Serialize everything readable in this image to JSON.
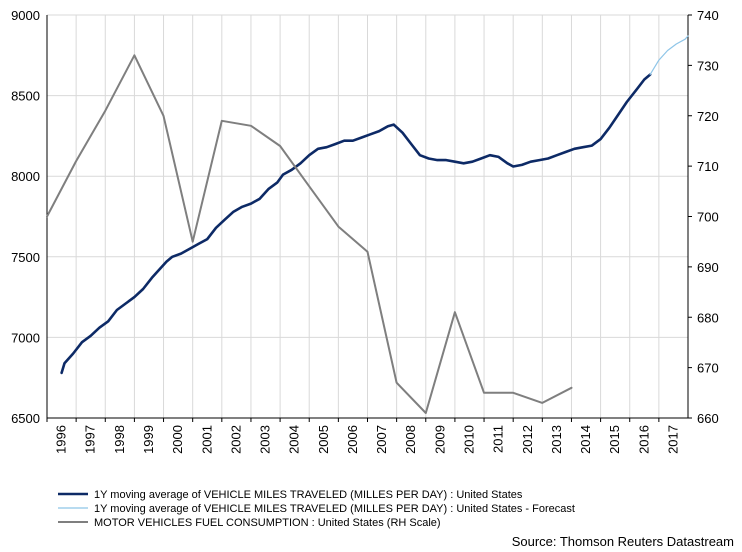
{
  "chart_data": {
    "type": "line",
    "x_ticks": [
      "1996",
      "1997",
      "1998",
      "1999",
      "2000",
      "2001",
      "2002",
      "2003",
      "2004",
      "2005",
      "2006",
      "2007",
      "2008",
      "2009",
      "2010",
      "2011",
      "2012",
      "2013",
      "2014",
      "2015",
      "2016",
      "2017"
    ],
    "y_left": {
      "min": 6500,
      "max": 9000,
      "ticks": [
        "6500",
        "7000",
        "7500",
        "8000",
        "8500",
        "9000"
      ]
    },
    "y_right": {
      "min": 660,
      "max": 740,
      "ticks": [
        "660",
        "670",
        "680",
        "690",
        "700",
        "710",
        "720",
        "730",
        "740"
      ]
    },
    "grid": true,
    "legend_placement": "bottom",
    "source": "Source: Thomson Reuters Datastream",
    "series": [
      {
        "name": "1Y moving average of VEHICLE MILES TRAVELED (MILLES PER DAY) : United States",
        "axis": "left",
        "color": "#0d2a66",
        "points": [
          [
            1996.5,
            6780
          ],
          [
            1996.6,
            6840
          ],
          [
            1996.9,
            6900
          ],
          [
            1997.2,
            6970
          ],
          [
            1997.5,
            7010
          ],
          [
            1997.8,
            7060
          ],
          [
            1998.1,
            7100
          ],
          [
            1998.4,
            7170
          ],
          [
            1998.7,
            7210
          ],
          [
            1999.0,
            7250
          ],
          [
            1999.3,
            7300
          ],
          [
            1999.6,
            7370
          ],
          [
            1999.9,
            7430
          ],
          [
            2000.1,
            7470
          ],
          [
            2000.3,
            7500
          ],
          [
            2000.6,
            7520
          ],
          [
            2000.9,
            7550
          ],
          [
            2001.2,
            7580
          ],
          [
            2001.5,
            7610
          ],
          [
            2001.8,
            7680
          ],
          [
            2002.1,
            7730
          ],
          [
            2002.4,
            7780
          ],
          [
            2002.7,
            7810
          ],
          [
            2003.0,
            7830
          ],
          [
            2003.3,
            7860
          ],
          [
            2003.6,
            7920
          ],
          [
            2003.9,
            7960
          ],
          [
            2004.1,
            8010
          ],
          [
            2004.4,
            8040
          ],
          [
            2004.7,
            8080
          ],
          [
            2005.0,
            8130
          ],
          [
            2005.3,
            8170
          ],
          [
            2005.6,
            8180
          ],
          [
            2005.9,
            8200
          ],
          [
            2006.2,
            8220
          ],
          [
            2006.5,
            8220
          ],
          [
            2006.8,
            8240
          ],
          [
            2007.1,
            8260
          ],
          [
            2007.4,
            8280
          ],
          [
            2007.7,
            8310
          ],
          [
            2007.9,
            8320
          ],
          [
            2008.2,
            8270
          ],
          [
            2008.5,
            8200
          ],
          [
            2008.8,
            8130
          ],
          [
            2009.1,
            8110
          ],
          [
            2009.4,
            8100
          ],
          [
            2009.7,
            8100
          ],
          [
            2010.0,
            8090
          ],
          [
            2010.3,
            8080
          ],
          [
            2010.6,
            8090
          ],
          [
            2010.9,
            8110
          ],
          [
            2011.2,
            8130
          ],
          [
            2011.5,
            8120
          ],
          [
            2011.8,
            8080
          ],
          [
            2012.0,
            8060
          ],
          [
            2012.3,
            8070
          ],
          [
            2012.6,
            8090
          ],
          [
            2012.9,
            8100
          ],
          [
            2013.2,
            8110
          ],
          [
            2013.5,
            8130
          ],
          [
            2013.8,
            8150
          ],
          [
            2014.1,
            8170
          ],
          [
            2014.4,
            8180
          ],
          [
            2014.7,
            8190
          ],
          [
            2015.0,
            8230
          ],
          [
            2015.3,
            8300
          ],
          [
            2015.6,
            8380
          ],
          [
            2015.9,
            8460
          ],
          [
            2016.2,
            8530
          ],
          [
            2016.5,
            8600
          ],
          [
            2016.7,
            8630
          ]
        ]
      },
      {
        "name": "1Y moving average of VEHICLE MILES TRAVELED (MILLES PER DAY) : United States - Forecast",
        "axis": "left",
        "color": "#8ec5e8",
        "points": [
          [
            2016.7,
            8630
          ],
          [
            2017.0,
            8720
          ],
          [
            2017.3,
            8780
          ],
          [
            2017.6,
            8820
          ],
          [
            2017.9,
            8850
          ],
          [
            2018.0,
            8870
          ]
        ]
      },
      {
        "name": "MOTOR VEHICLES FUEL CONSUMPTION : United States (RH Scale)",
        "axis": "right",
        "color": "#7f7f7f",
        "points": [
          [
            1996.0,
            700
          ],
          [
            1997.0,
            711
          ],
          [
            1998.0,
            721
          ],
          [
            1999.0,
            732
          ],
          [
            2000.0,
            720
          ],
          [
            2001.0,
            695
          ],
          [
            2002.0,
            719
          ],
          [
            2003.0,
            718
          ],
          [
            2004.0,
            714
          ],
          [
            2005.0,
            706
          ],
          [
            2006.0,
            698
          ],
          [
            2007.0,
            693
          ],
          [
            2008.0,
            667
          ],
          [
            2009.0,
            661
          ],
          [
            2010.0,
            681
          ],
          [
            2011.0,
            665
          ],
          [
            2012.0,
            665
          ],
          [
            2013.0,
            663
          ],
          [
            2014.0,
            666
          ]
        ]
      }
    ]
  }
}
